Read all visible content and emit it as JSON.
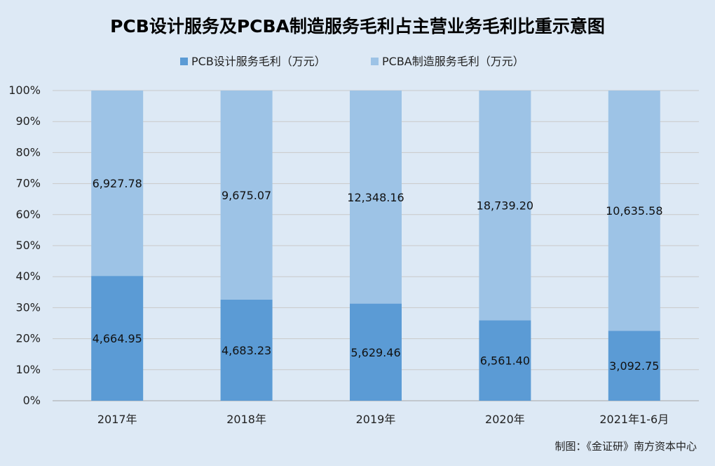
{
  "chart_data": {
    "type": "bar",
    "stacked": "percent",
    "title": "PCB设计服务及PCBA制造服务毛利占主营业务毛利比重示意图",
    "categories": [
      "2017年",
      "2018年",
      "2019年",
      "2020年",
      "2021年1-6月"
    ],
    "series": [
      {
        "name": "PCB设计服务毛利（万元）",
        "values": [
          4664.95,
          4683.23,
          5629.46,
          6561.4,
          3092.75
        ],
        "labels": [
          "4,664.95",
          "4,683.23",
          "5,629.46",
          "6,561.40",
          "3,092.75"
        ],
        "color": "#5b9bd5"
      },
      {
        "name": "PCBA制造服务毛利（万元）",
        "values": [
          6927.78,
          9675.07,
          12348.16,
          18739.2,
          10635.58
        ],
        "labels": [
          "6,927.78",
          "9,675.07",
          "12,348.16",
          "18,739.20",
          "10,635.58"
        ],
        "color": "#9dc3e6"
      }
    ],
    "yticks": [
      "0%",
      "10%",
      "20%",
      "30%",
      "40%",
      "50%",
      "60%",
      "70%",
      "80%",
      "90%",
      "100%"
    ],
    "ylim": [
      0,
      100
    ],
    "grid": true,
    "legend": "top",
    "gridColor": "#c9c9c9"
  },
  "credit": "制图：《金证研》南方资本中心"
}
